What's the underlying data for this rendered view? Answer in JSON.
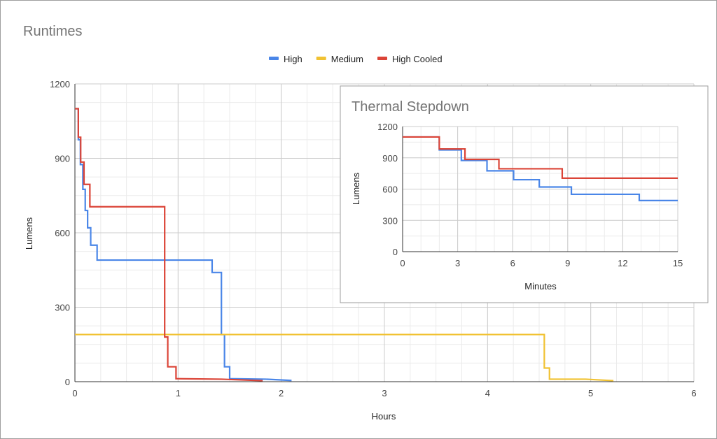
{
  "chart_data": [
    {
      "type": "line",
      "title": "Runtimes",
      "xlabel": "Hours",
      "ylabel": "Lumens",
      "xlim": [
        0,
        6
      ],
      "ylim": [
        0,
        1200
      ],
      "xticks": [
        "0",
        "1",
        "2",
        "3",
        "4",
        "5",
        "6"
      ],
      "yticks": [
        "0",
        "300",
        "600",
        "900",
        "1200"
      ],
      "grid": true,
      "legend": "top-center",
      "series": [
        {
          "name": "High",
          "color": "#4a86e8",
          "points": [
            [
              0,
              1100
            ],
            [
              0.033,
              1100
            ],
            [
              0.033,
              975
            ],
            [
              0.053,
              975
            ],
            [
              0.053,
              875
            ],
            [
              0.077,
              875
            ],
            [
              0.077,
              775
            ],
            [
              0.1,
              775
            ],
            [
              0.1,
              690
            ],
            [
              0.123,
              690
            ],
            [
              0.123,
              620
            ],
            [
              0.153,
              620
            ],
            [
              0.153,
              550
            ],
            [
              0.215,
              550
            ],
            [
              0.215,
              490
            ],
            [
              1.33,
              490
            ],
            [
              1.33,
              440
            ],
            [
              1.42,
              440
            ],
            [
              1.42,
              190
            ],
            [
              1.45,
              190
            ],
            [
              1.45,
              60
            ],
            [
              1.5,
              60
            ],
            [
              1.5,
              12
            ],
            [
              1.85,
              10
            ],
            [
              2.1,
              5
            ]
          ]
        },
        {
          "name": "Medium",
          "color": "#f1c232",
          "points": [
            [
              0,
              190
            ],
            [
              4.55,
              190
            ],
            [
              4.55,
              55
            ],
            [
              4.6,
              55
            ],
            [
              4.6,
              10
            ],
            [
              4.95,
              10
            ],
            [
              5.22,
              4
            ]
          ]
        },
        {
          "name": "High Cooled",
          "color": "#db4437",
          "points": [
            [
              0,
              1100
            ],
            [
              0.033,
              1100
            ],
            [
              0.033,
              985
            ],
            [
              0.056,
              985
            ],
            [
              0.056,
              885
            ],
            [
              0.088,
              885
            ],
            [
              0.088,
              795
            ],
            [
              0.145,
              795
            ],
            [
              0.145,
              705
            ],
            [
              0.87,
              705
            ],
            [
              0.87,
              180
            ],
            [
              0.9,
              180
            ],
            [
              0.9,
              60
            ],
            [
              0.98,
              60
            ],
            [
              0.98,
              12
            ],
            [
              1.42,
              10
            ],
            [
              1.82,
              4
            ]
          ]
        }
      ]
    },
    {
      "type": "line",
      "title": "Thermal Stepdown",
      "xlabel": "Minutes",
      "ylabel": "Lumens",
      "xlim": [
        0,
        15
      ],
      "ylim": [
        0,
        1200
      ],
      "xticks": [
        "0",
        "3",
        "6",
        "9",
        "12",
        "15"
      ],
      "yticks": [
        "0",
        "300",
        "600",
        "900",
        "1200"
      ],
      "grid": true,
      "series": [
        {
          "name": "High",
          "color": "#4a86e8",
          "points": [
            [
              0,
              1100
            ],
            [
              2,
              1100
            ],
            [
              2,
              975
            ],
            [
              3.2,
              975
            ],
            [
              3.2,
              875
            ],
            [
              4.6,
              875
            ],
            [
              4.6,
              775
            ],
            [
              6.05,
              775
            ],
            [
              6.05,
              690
            ],
            [
              7.45,
              690
            ],
            [
              7.45,
              620
            ],
            [
              9.2,
              620
            ],
            [
              9.2,
              550
            ],
            [
              12.9,
              550
            ],
            [
              12.9,
              490
            ],
            [
              15,
              490
            ]
          ]
        },
        {
          "name": "High Cooled",
          "color": "#db4437",
          "points": [
            [
              0,
              1100
            ],
            [
              2,
              1100
            ],
            [
              2,
              985
            ],
            [
              3.4,
              985
            ],
            [
              3.4,
              885
            ],
            [
              5.25,
              885
            ],
            [
              5.25,
              795
            ],
            [
              8.7,
              795
            ],
            [
              8.7,
              705
            ],
            [
              15,
              705
            ]
          ]
        }
      ]
    }
  ]
}
